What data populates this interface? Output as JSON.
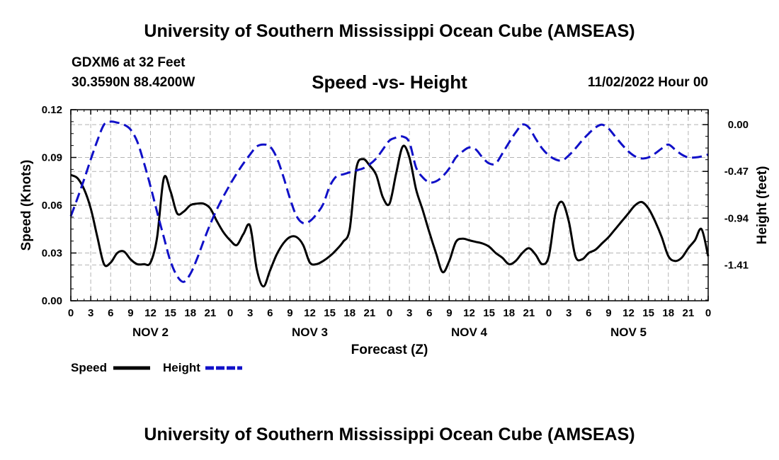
{
  "header": {
    "title_top": "University of Southern Mississippi Ocean Cube (AMSEAS)",
    "station": "GDXM6 at 32 Feet",
    "coords": "30.3590N  88.4200W",
    "subtitle": "Speed -vs- Height",
    "datetime": "11/02/2022 Hour 00",
    "title_bottom": "University of Southern Mississippi Ocean Cube (AMSEAS)"
  },
  "colors": {
    "speed": "#000000",
    "height": "#1010c8",
    "grid": "#b4b4b4"
  },
  "chart_data": {
    "type": "line",
    "title": "Speed -vs- Height",
    "xlabel": "Forecast (Z)",
    "ylabel": "Speed (Knots)",
    "y2label": "Height (feet)",
    "x_unit": "forecast hours from 11/02/2022 00Z",
    "xlim": [
      0,
      96
    ],
    "ylim": [
      0,
      0.12
    ],
    "y2lim": [
      -1.77,
      0.15
    ],
    "grid": true,
    "legend_position": "bottom-left",
    "x_ticks": [
      0,
      3,
      6,
      9,
      12,
      15,
      18,
      21,
      24,
      27,
      30,
      33,
      36,
      39,
      42,
      45,
      48,
      51,
      54,
      57,
      60,
      63,
      66,
      69,
      72,
      75,
      78,
      81,
      84,
      87,
      90,
      93,
      96
    ],
    "x_tick_labels": [
      "0",
      "3",
      "6",
      "9",
      "12",
      "15",
      "18",
      "21",
      "0",
      "3",
      "6",
      "9",
      "12",
      "15",
      "18",
      "21",
      "0",
      "3",
      "6",
      "9",
      "12",
      "15",
      "18",
      "21",
      "0",
      "3",
      "6",
      "9",
      "12",
      "15",
      "18",
      "21",
      "0"
    ],
    "day_labels": [
      {
        "x": 12,
        "label": "NOV 2"
      },
      {
        "x": 36,
        "label": "NOV 3"
      },
      {
        "x": 60,
        "label": "NOV 4"
      },
      {
        "x": 84,
        "label": "NOV 5"
      }
    ],
    "y_ticks": [
      0,
      0.03,
      0.06,
      0.09,
      0.12
    ],
    "y_tick_labels": [
      "0.00",
      "0.03",
      "0.06",
      "0.09",
      "0.12"
    ],
    "y2_ticks": [
      0,
      -0.47,
      -0.94,
      -1.41
    ],
    "y2_tick_labels": [
      "0.00",
      "-0.47",
      "-0.94",
      "-1.41"
    ],
    "series": [
      {
        "name": "Speed",
        "axis": "left",
        "dash": false,
        "x": [
          0,
          1,
          2,
          3,
          4,
          5,
          6,
          7,
          8,
          9,
          10,
          11,
          12,
          13,
          14,
          15,
          16,
          17,
          18,
          19,
          20,
          21,
          22,
          23,
          24,
          25,
          26,
          27,
          28,
          29,
          30,
          31,
          32,
          33,
          34,
          35,
          36,
          37,
          38,
          39,
          40,
          41,
          42,
          43,
          44,
          45,
          46,
          47,
          48,
          49,
          50,
          51,
          52,
          53,
          54,
          55,
          56,
          57,
          58,
          59,
          60,
          61,
          62,
          63,
          64,
          65,
          66,
          67,
          68,
          69,
          70,
          71,
          72,
          73,
          74,
          75,
          76,
          77,
          78,
          79,
          80,
          81,
          82,
          83,
          84,
          85,
          86,
          87,
          88,
          89,
          90,
          91,
          92,
          93,
          94,
          95,
          96
        ],
        "values": [
          0.079,
          0.077,
          0.07,
          0.058,
          0.04,
          0.023,
          0.024,
          0.03,
          0.031,
          0.026,
          0.023,
          0.023,
          0.024,
          0.04,
          0.077,
          0.069,
          0.055,
          0.056,
          0.06,
          0.061,
          0.061,
          0.058,
          0.05,
          0.043,
          0.038,
          0.035,
          0.042,
          0.047,
          0.02,
          0.009,
          0.019,
          0.029,
          0.036,
          0.04,
          0.04,
          0.035,
          0.024,
          0.023,
          0.025,
          0.028,
          0.032,
          0.037,
          0.045,
          0.083,
          0.089,
          0.085,
          0.079,
          0.065,
          0.061,
          0.08,
          0.097,
          0.09,
          0.07,
          0.057,
          0.043,
          0.03,
          0.018,
          0.025,
          0.037,
          0.039,
          0.038,
          0.037,
          0.036,
          0.034,
          0.03,
          0.027,
          0.023,
          0.025,
          0.03,
          0.033,
          0.029,
          0.023,
          0.028,
          0.055,
          0.062,
          0.05,
          0.028,
          0.026,
          0.03,
          0.032,
          0.036,
          0.04,
          0.045,
          0.05,
          0.055,
          0.06,
          0.062,
          0.058,
          0.05,
          0.04,
          0.028,
          0.025,
          0.027,
          0.033,
          0.038,
          0.045,
          0.028
        ]
      },
      {
        "name": "Height",
        "axis": "right",
        "dash": true,
        "x": [
          0,
          1,
          2,
          3,
          4,
          5,
          6,
          7,
          8,
          9,
          10,
          11,
          12,
          13,
          14,
          15,
          16,
          17,
          18,
          19,
          20,
          21,
          22,
          23,
          24,
          25,
          26,
          27,
          28,
          29,
          30,
          31,
          32,
          33,
          34,
          35,
          36,
          37,
          38,
          39,
          40,
          41,
          42,
          43,
          44,
          45,
          46,
          47,
          48,
          49,
          50,
          51,
          52,
          53,
          54,
          55,
          56,
          57,
          58,
          59,
          60,
          61,
          62,
          63,
          64,
          65,
          66,
          67,
          68,
          69,
          70,
          71,
          72,
          73,
          74,
          75,
          76,
          77,
          78,
          79,
          80,
          81,
          82,
          83,
          84,
          85,
          86,
          87,
          88,
          89,
          90,
          91,
          92,
          93,
          94,
          95,
          96
        ],
        "values": [
          -0.92,
          -0.74,
          -0.55,
          -0.35,
          -0.16,
          0.0,
          0.03,
          0.02,
          0.0,
          -0.05,
          -0.17,
          -0.38,
          -0.62,
          -0.88,
          -1.13,
          -1.37,
          -1.52,
          -1.58,
          -1.5,
          -1.35,
          -1.17,
          -1.0,
          -0.85,
          -0.72,
          -0.6,
          -0.49,
          -0.39,
          -0.3,
          -0.22,
          -0.2,
          -0.22,
          -0.33,
          -0.52,
          -0.74,
          -0.92,
          -0.99,
          -0.97,
          -0.9,
          -0.8,
          -0.62,
          -0.52,
          -0.5,
          -0.48,
          -0.46,
          -0.44,
          -0.4,
          -0.34,
          -0.25,
          -0.16,
          -0.13,
          -0.12,
          -0.18,
          -0.43,
          -0.53,
          -0.58,
          -0.57,
          -0.52,
          -0.44,
          -0.33,
          -0.27,
          -0.23,
          -0.25,
          -0.33,
          -0.39,
          -0.39,
          -0.29,
          -0.18,
          -0.08,
          0.0,
          -0.03,
          -0.14,
          -0.24,
          -0.31,
          -0.35,
          -0.36,
          -0.31,
          -0.24,
          -0.16,
          -0.09,
          -0.03,
          0.0,
          -0.04,
          -0.12,
          -0.2,
          -0.27,
          -0.32,
          -0.34,
          -0.33,
          -0.29,
          -0.24,
          -0.2,
          -0.25,
          -0.3,
          -0.33,
          -0.33,
          -0.32,
          -0.3
        ]
      }
    ]
  }
}
